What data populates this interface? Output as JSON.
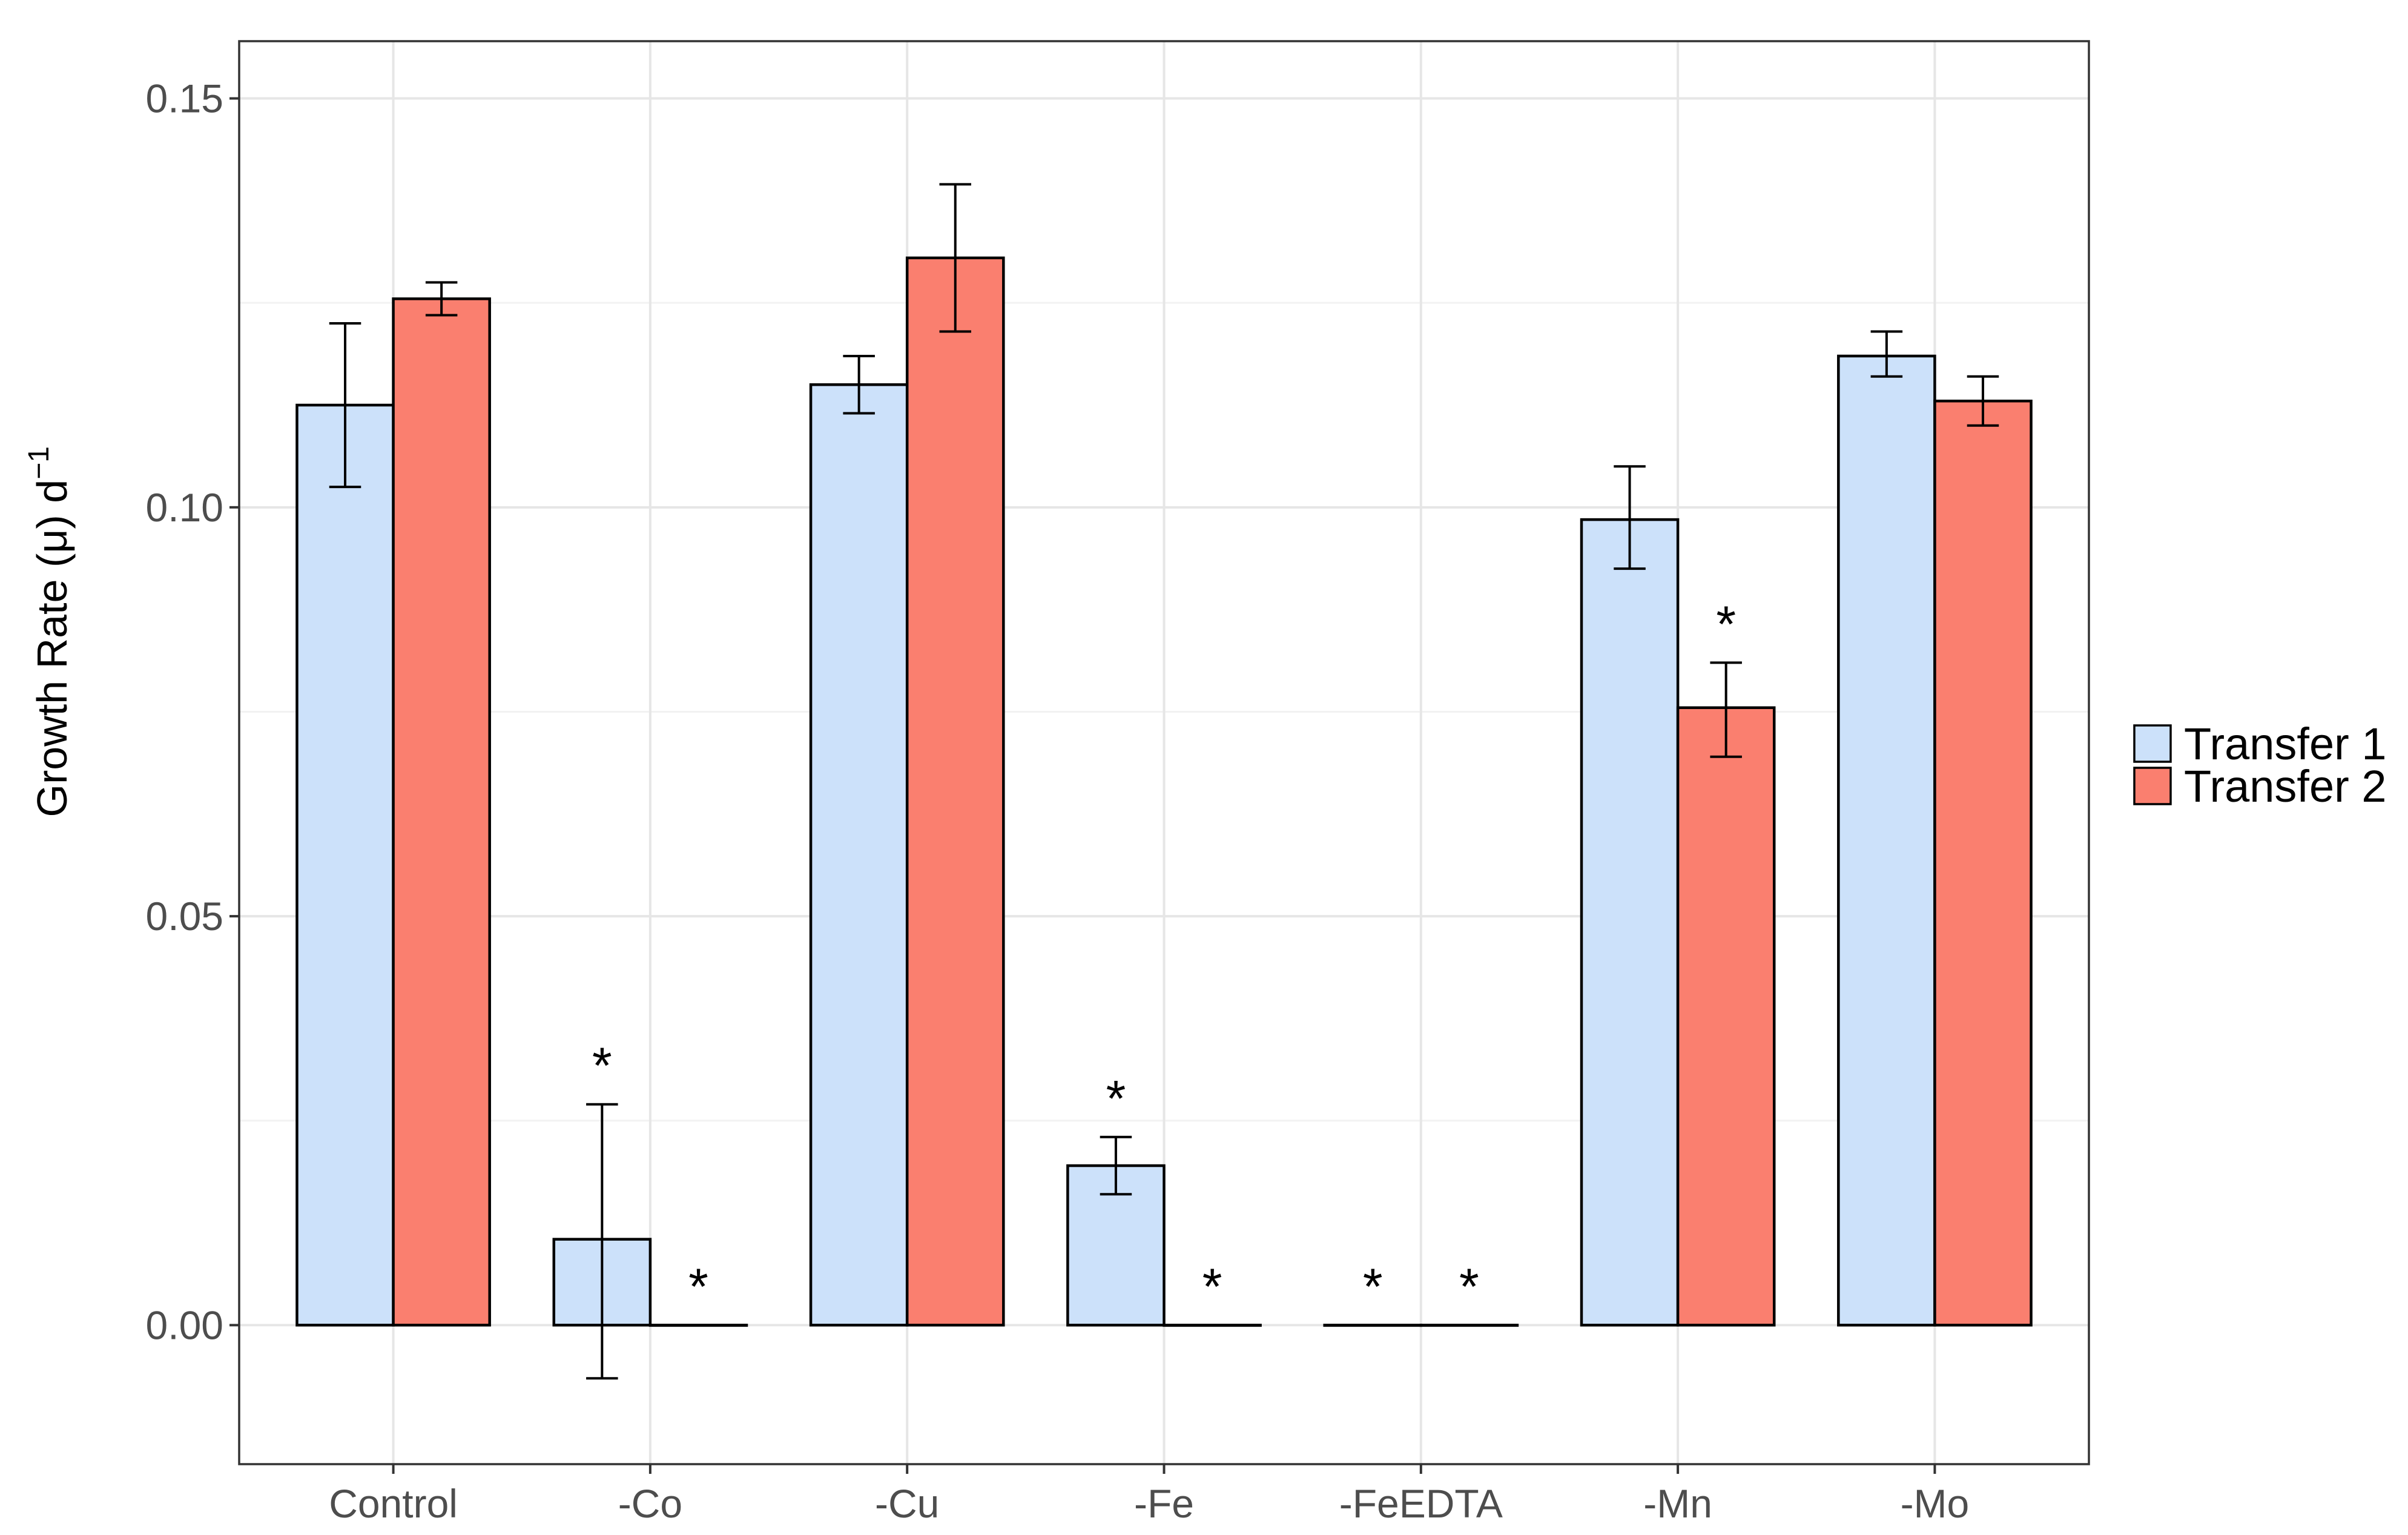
{
  "chart_data": {
    "type": "bar",
    "title": "",
    "xlabel": "",
    "ylabel": "Growth Rate (μ) d",
    "ylabel_superscript": "−1",
    "ylim": [
      -0.017,
      0.157
    ],
    "yticks": [
      0.0,
      0.05,
      0.1,
      0.15
    ],
    "ytick_labels": [
      "0.00",
      "0.05",
      "0.10",
      "0.15"
    ],
    "grid": true,
    "legend_position": "right",
    "categories": [
      "Control",
      "-Co",
      "-Cu",
      "-Fe",
      "-FeEDTA",
      "-Mn",
      "-Mo"
    ],
    "series": [
      {
        "name": "Transfer 1",
        "color": "#cce1fa",
        "values": [
          0.1125,
          0.0105,
          0.115,
          0.0195,
          0.0,
          0.0985,
          0.1185
        ],
        "err_low": [
          0.1025,
          -0.0065,
          0.1115,
          0.016,
          null,
          0.0925,
          0.116
        ],
        "err_high": [
          0.1225,
          0.027,
          0.1185,
          0.023,
          null,
          0.105,
          0.1215
        ],
        "significance": [
          "",
          "*",
          "",
          "*",
          "*",
          "",
          ""
        ]
      },
      {
        "name": "Transfer 2",
        "color": "#fa7f6f",
        "values": [
          0.1255,
          0.0,
          0.1305,
          0.0,
          0.0,
          0.0755,
          0.113
        ],
        "err_low": [
          0.1235,
          null,
          0.1215,
          null,
          null,
          0.0695,
          0.11
        ],
        "err_high": [
          0.1275,
          null,
          0.1395,
          null,
          null,
          0.081,
          0.116
        ],
        "significance": [
          "",
          "*",
          "",
          "*",
          "*",
          "*",
          ""
        ]
      }
    ]
  }
}
